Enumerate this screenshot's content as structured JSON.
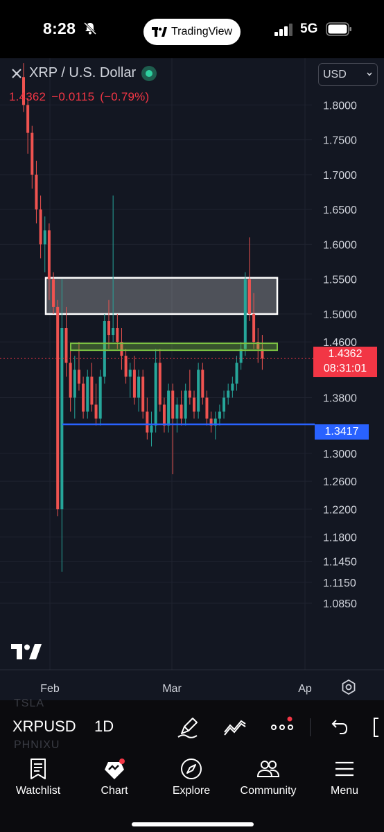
{
  "status_bar": {
    "time": "8:28",
    "app_pill": "TradingView",
    "network": "5G",
    "icons": [
      "bell-slash-icon",
      "signal-icon",
      "battery-icon"
    ]
  },
  "chart": {
    "symbol_title": "XRP / U.S. Dollar",
    "quote": {
      "last": "1.4362",
      "change": "−0.0115",
      "change_pct": "(−0.79%)"
    },
    "currency": "USD",
    "current_price_label": "1.4362",
    "countdown_label": "08:31:01",
    "level_label": "1.3417",
    "colors": {
      "up": "#26a69a",
      "down": "#ef5350",
      "background": "#131722",
      "level_line": "#2962ff",
      "current_line": "#f23645",
      "zone_green": "#7cc242"
    }
  },
  "chart_data": {
    "type": "candlestick",
    "y_ticks": [
      "1.8000",
      "1.7500",
      "1.7000",
      "1.6500",
      "1.6000",
      "1.5500",
      "1.5000",
      "1.4600",
      "1.3800",
      "1.3000",
      "1.2600",
      "1.2200",
      "1.1800",
      "1.1450",
      "1.1150",
      "1.0850"
    ],
    "x_ticks": [
      "Feb",
      "Mar",
      "Ap"
    ],
    "grid": true,
    "horizontal_levels": [
      {
        "value": 1.3417,
        "color": "#2962ff"
      },
      {
        "value": 1.4362,
        "color": "#f23645",
        "style": "dotted"
      }
    ],
    "zones": [
      {
        "type": "resistance",
        "low": 1.5,
        "high": 1.552,
        "color": "white"
      },
      {
        "type": "support",
        "low": 1.448,
        "high": 1.458,
        "color": "green"
      }
    ],
    "candles": [
      [
        1.84,
        1.86,
        1.79,
        1.8
      ],
      [
        1.8,
        1.81,
        1.73,
        1.76
      ],
      [
        1.76,
        1.77,
        1.68,
        1.7
      ],
      [
        1.7,
        1.72,
        1.63,
        1.65
      ],
      [
        1.65,
        1.67,
        1.58,
        1.6
      ],
      [
        1.6,
        1.64,
        1.56,
        1.62
      ],
      [
        1.62,
        1.63,
        1.52,
        1.55
      ],
      [
        1.55,
        1.56,
        1.5,
        1.51
      ],
      [
        1.51,
        1.52,
        1.21,
        1.22
      ],
      [
        1.22,
        1.55,
        1.13,
        1.48
      ],
      [
        1.48,
        1.51,
        1.41,
        1.43
      ],
      [
        1.43,
        1.45,
        1.36,
        1.38
      ],
      [
        1.38,
        1.44,
        1.35,
        1.42
      ],
      [
        1.42,
        1.46,
        1.39,
        1.4
      ],
      [
        1.4,
        1.41,
        1.35,
        1.36
      ],
      [
        1.36,
        1.42,
        1.35,
        1.41
      ],
      [
        1.41,
        1.43,
        1.36,
        1.37
      ],
      [
        1.37,
        1.4,
        1.34,
        1.35
      ],
      [
        1.35,
        1.42,
        1.34,
        1.41
      ],
      [
        1.41,
        1.5,
        1.4,
        1.49
      ],
      [
        1.49,
        1.52,
        1.45,
        1.47
      ],
      [
        1.47,
        1.67,
        1.46,
        1.48
      ],
      [
        1.48,
        1.5,
        1.45,
        1.46
      ],
      [
        1.46,
        1.48,
        1.42,
        1.44
      ],
      [
        1.44,
        1.45,
        1.4,
        1.41
      ],
      [
        1.41,
        1.43,
        1.38,
        1.42
      ],
      [
        1.42,
        1.44,
        1.37,
        1.38
      ],
      [
        1.38,
        1.42,
        1.36,
        1.41
      ],
      [
        1.41,
        1.42,
        1.35,
        1.36
      ],
      [
        1.36,
        1.38,
        1.32,
        1.33
      ],
      [
        1.33,
        1.36,
        1.31,
        1.34
      ],
      [
        1.34,
        1.45,
        1.33,
        1.43
      ],
      [
        1.43,
        1.45,
        1.36,
        1.37
      ],
      [
        1.37,
        1.38,
        1.33,
        1.34
      ],
      [
        1.34,
        1.4,
        1.33,
        1.39
      ],
      [
        1.39,
        1.4,
        1.27,
        1.35
      ],
      [
        1.35,
        1.38,
        1.33,
        1.37
      ],
      [
        1.37,
        1.39,
        1.34,
        1.35
      ],
      [
        1.35,
        1.4,
        1.34,
        1.39
      ],
      [
        1.39,
        1.42,
        1.37,
        1.38
      ],
      [
        1.38,
        1.39,
        1.35,
        1.36
      ],
      [
        1.36,
        1.43,
        1.35,
        1.42
      ],
      [
        1.42,
        1.43,
        1.37,
        1.38
      ],
      [
        1.38,
        1.39,
        1.34,
        1.35
      ],
      [
        1.35,
        1.36,
        1.33,
        1.34
      ],
      [
        1.34,
        1.36,
        1.32,
        1.35
      ],
      [
        1.35,
        1.37,
        1.34,
        1.36
      ],
      [
        1.36,
        1.39,
        1.35,
        1.38
      ],
      [
        1.38,
        1.4,
        1.37,
        1.39
      ],
      [
        1.39,
        1.41,
        1.38,
        1.4
      ],
      [
        1.4,
        1.44,
        1.39,
        1.43
      ],
      [
        1.43,
        1.46,
        1.42,
        1.45
      ],
      [
        1.45,
        1.56,
        1.44,
        1.55
      ],
      [
        1.55,
        1.61,
        1.49,
        1.5
      ],
      [
        1.5,
        1.53,
        1.45,
        1.46
      ],
      [
        1.46,
        1.48,
        1.43,
        1.45
      ],
      [
        1.45,
        1.47,
        1.42,
        1.4362
      ]
    ]
  },
  "toolbar": {
    "ghost_symbols": [
      "TSLA",
      "PHNIXU"
    ],
    "symbol": "XRPUSD",
    "interval": "1D"
  },
  "nav": {
    "items": [
      {
        "label": "Watchlist",
        "icon": "watchlist-icon"
      },
      {
        "label": "Chart",
        "icon": "chart-icon"
      },
      {
        "label": "Explore",
        "icon": "compass-icon"
      },
      {
        "label": "Community",
        "icon": "community-icon"
      },
      {
        "label": "Menu",
        "icon": "menu-icon"
      }
    ]
  }
}
